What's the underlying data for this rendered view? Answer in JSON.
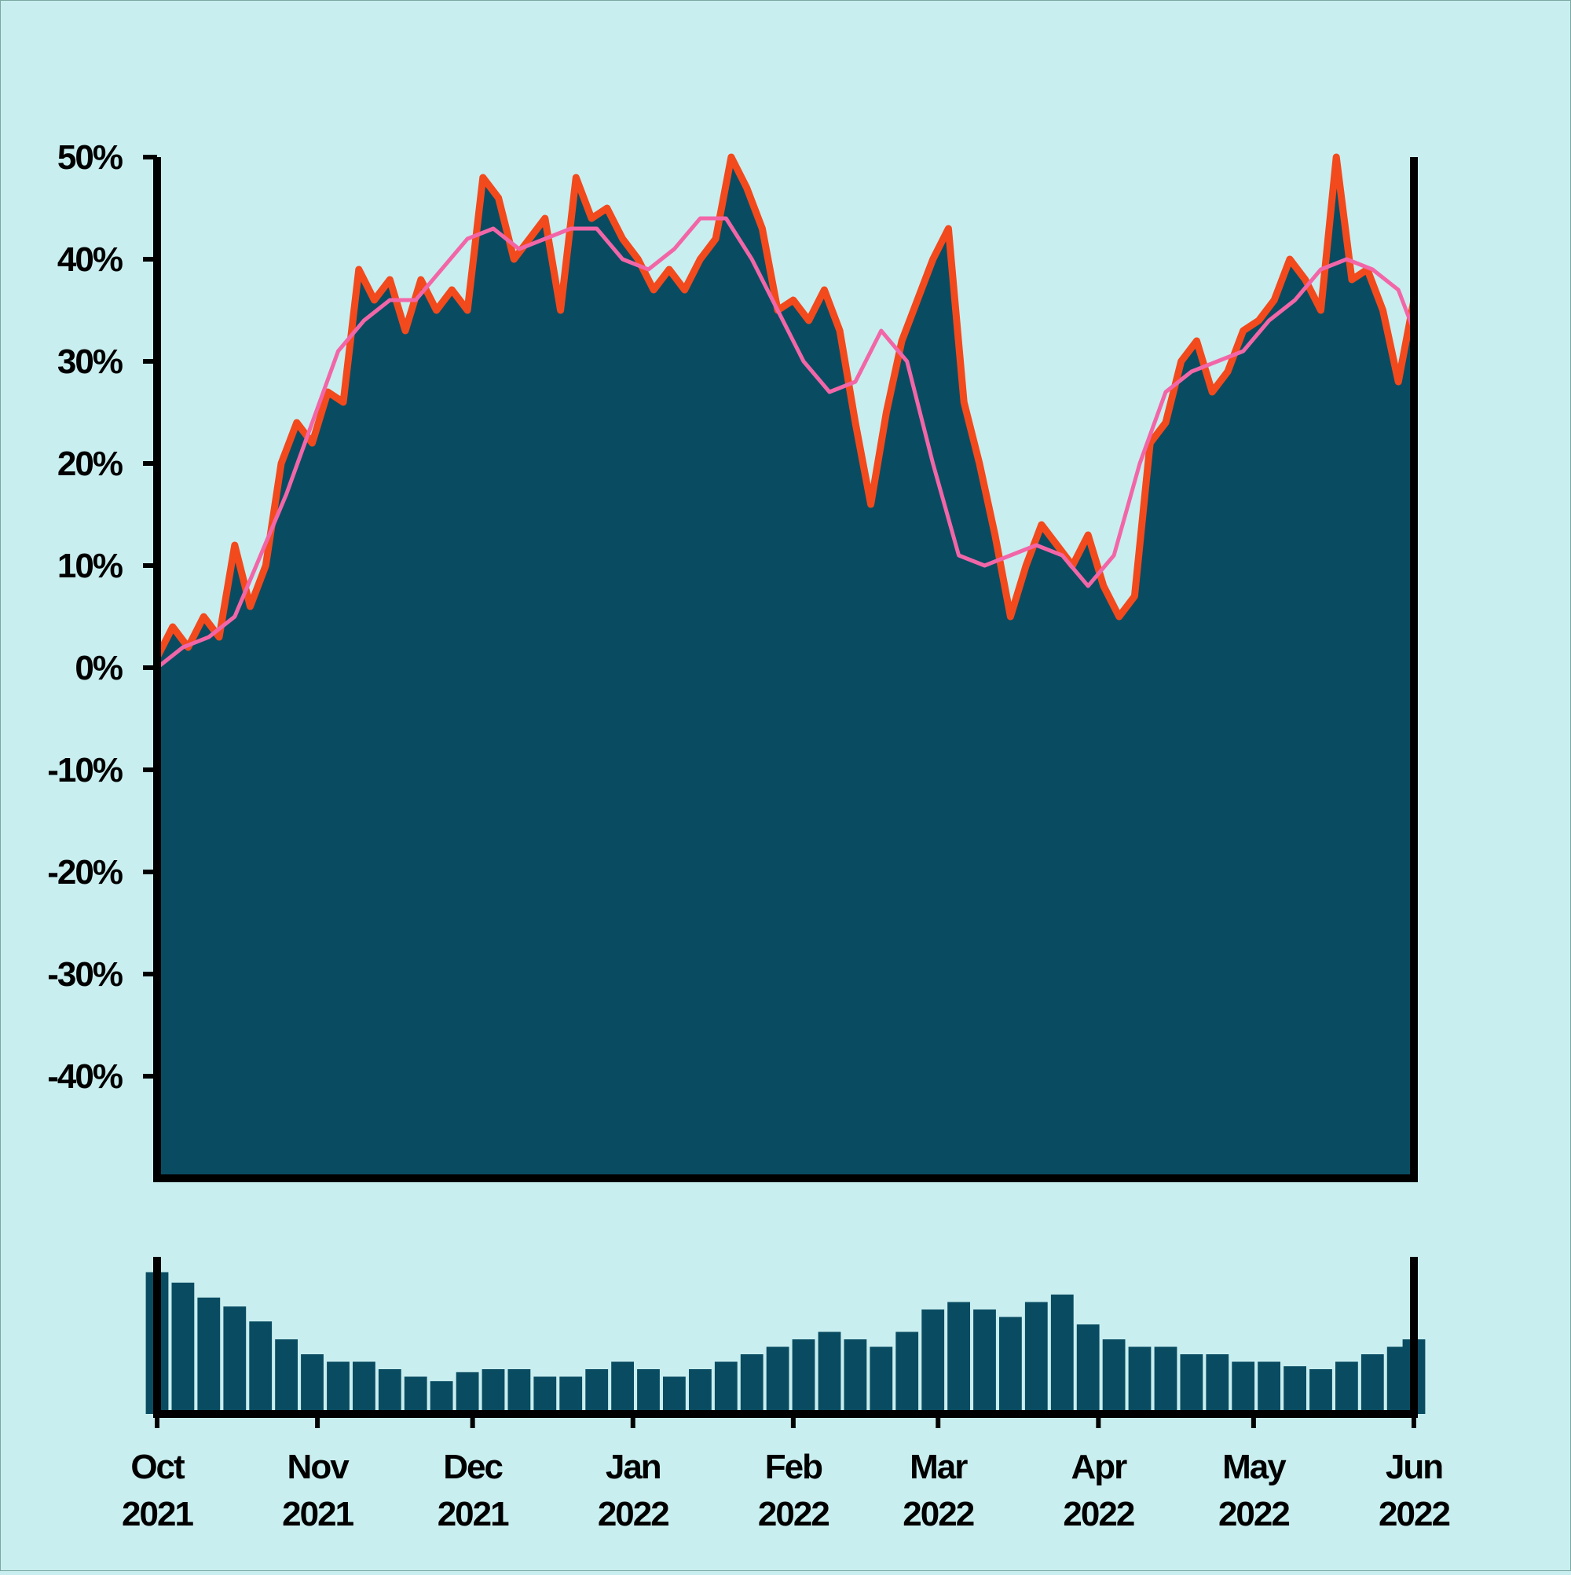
{
  "chart_data": {
    "type": "area",
    "title": "",
    "xlabel": "",
    "ylabel": "",
    "x_range": [
      "2021-10-01",
      "2022-06-01"
    ],
    "ylim": [
      -50,
      50
    ],
    "y_ticks": [
      50,
      40,
      30,
      20,
      10,
      0,
      -10,
      -20,
      -30,
      -40
    ],
    "y_tick_labels": [
      "50%",
      "40%",
      "30%",
      "20%",
      "10%",
      "0%",
      "-10%",
      "-20%",
      "-30%",
      "-40%"
    ],
    "x_ticks": [
      "2021-10-01",
      "2021-11-01",
      "2021-12-01",
      "2022-01-01",
      "2022-02-01",
      "2022-03-01",
      "2022-04-01",
      "2022-05-01",
      "2022-06-01"
    ],
    "x_tick_labels": [
      {
        "month": "Oct",
        "year": "2021"
      },
      {
        "month": "Nov",
        "year": "2021"
      },
      {
        "month": "Dec",
        "year": "2021"
      },
      {
        "month": "Jan",
        "year": "2022"
      },
      {
        "month": "Feb",
        "year": "2022"
      },
      {
        "month": "Mar",
        "year": "2022"
      },
      {
        "month": "Apr",
        "year": "2022"
      },
      {
        "month": "May",
        "year": "2022"
      },
      {
        "month": "Jun",
        "year": "2022"
      }
    ],
    "grid": false,
    "legend": "none",
    "series": [
      {
        "kind": "area",
        "x": [
          "2021-10-01",
          "2021-10-04",
          "2021-10-07",
          "2021-10-10",
          "2021-10-13",
          "2021-10-16",
          "2021-10-19",
          "2021-10-22",
          "2021-10-25",
          "2021-10-28",
          "2021-10-31",
          "2021-11-03",
          "2021-11-06",
          "2021-11-09",
          "2021-11-12",
          "2021-11-15",
          "2021-11-18",
          "2021-11-21",
          "2021-11-24",
          "2021-11-27",
          "2021-11-30",
          "2021-12-03",
          "2021-12-06",
          "2021-12-09",
          "2021-12-12",
          "2021-12-15",
          "2021-12-18",
          "2021-12-21",
          "2021-12-24",
          "2021-12-27",
          "2021-12-30",
          "2022-01-02",
          "2022-01-05",
          "2022-01-08",
          "2022-01-11",
          "2022-01-14",
          "2022-01-17",
          "2022-01-20",
          "2022-01-23",
          "2022-01-26",
          "2022-01-29",
          "2022-02-01",
          "2022-02-04",
          "2022-02-07",
          "2022-02-10",
          "2022-02-13",
          "2022-02-16",
          "2022-02-19",
          "2022-02-22",
          "2022-02-25",
          "2022-02-28",
          "2022-03-03",
          "2022-03-06",
          "2022-03-09",
          "2022-03-12",
          "2022-03-15",
          "2022-03-18",
          "2022-03-21",
          "2022-03-24",
          "2022-03-27",
          "2022-03-30",
          "2022-04-02",
          "2022-04-05",
          "2022-04-08",
          "2022-04-11",
          "2022-04-14",
          "2022-04-17",
          "2022-04-20",
          "2022-04-23",
          "2022-04-26",
          "2022-04-29",
          "2022-05-02",
          "2022-05-05",
          "2022-05-08",
          "2022-05-11",
          "2022-05-14",
          "2022-05-17",
          "2022-05-20",
          "2022-05-23",
          "2022-05-26",
          "2022-05-29",
          "2022-06-01"
        ],
        "values": [
          1,
          4,
          2,
          5,
          3,
          12,
          6,
          10,
          20,
          24,
          22,
          27,
          26,
          39,
          36,
          38,
          33,
          38,
          35,
          37,
          35,
          48,
          46,
          40,
          42,
          44,
          35,
          48,
          44,
          45,
          42,
          40,
          37,
          39,
          37,
          40,
          42,
          50,
          47,
          43,
          35,
          36,
          34,
          37,
          33,
          24,
          16,
          25,
          32,
          36,
          40,
          43,
          26,
          20,
          13,
          5,
          10,
          14,
          12,
          10,
          13,
          8,
          5,
          7,
          22,
          24,
          30,
          32,
          27,
          29,
          33,
          34,
          36,
          40,
          38,
          35,
          50,
          38,
          39,
          35,
          28,
          36
        ]
      },
      {
        "kind": "line",
        "x": [
          "2021-10-01",
          "2021-10-06",
          "2021-10-11",
          "2021-10-16",
          "2021-10-21",
          "2021-10-26",
          "2021-10-31",
          "2021-11-05",
          "2021-11-10",
          "2021-11-15",
          "2021-11-20",
          "2021-11-25",
          "2021-11-30",
          "2021-12-05",
          "2021-12-10",
          "2021-12-15",
          "2021-12-20",
          "2021-12-25",
          "2021-12-30",
          "2022-01-04",
          "2022-01-09",
          "2022-01-14",
          "2022-01-19",
          "2022-01-24",
          "2022-01-29",
          "2022-02-03",
          "2022-02-08",
          "2022-02-13",
          "2022-02-18",
          "2022-02-23",
          "2022-02-28",
          "2022-03-05",
          "2022-03-10",
          "2022-03-15",
          "2022-03-20",
          "2022-03-25",
          "2022-03-30",
          "2022-04-04",
          "2022-04-09",
          "2022-04-14",
          "2022-04-19",
          "2022-04-24",
          "2022-04-29",
          "2022-05-04",
          "2022-05-09",
          "2022-05-14",
          "2022-05-19",
          "2022-05-24",
          "2022-05-29",
          "2022-06-01"
        ],
        "values": [
          0,
          2,
          3,
          5,
          11,
          17,
          24,
          31,
          34,
          36,
          36,
          39,
          42,
          43,
          41,
          42,
          43,
          43,
          40,
          39,
          41,
          44,
          44,
          40,
          35,
          30,
          27,
          28,
          33,
          30,
          20,
          11,
          10,
          11,
          12,
          11,
          8,
          11,
          20,
          27,
          29,
          30,
          31,
          34,
          36,
          39,
          40,
          39,
          37,
          33
        ]
      },
      {
        "kind": "volume_bars",
        "x": [
          "2021-10-01",
          "2021-10-06",
          "2021-10-11",
          "2021-10-16",
          "2021-10-21",
          "2021-10-26",
          "2021-10-31",
          "2021-11-05",
          "2021-11-10",
          "2021-11-15",
          "2021-11-20",
          "2021-11-25",
          "2021-11-30",
          "2021-12-05",
          "2021-12-10",
          "2021-12-15",
          "2021-12-20",
          "2021-12-25",
          "2021-12-30",
          "2022-01-04",
          "2022-01-09",
          "2022-01-14",
          "2022-01-19",
          "2022-01-24",
          "2022-01-29",
          "2022-02-03",
          "2022-02-08",
          "2022-02-13",
          "2022-02-18",
          "2022-02-23",
          "2022-02-28",
          "2022-03-05",
          "2022-03-10",
          "2022-03-15",
          "2022-03-20",
          "2022-03-25",
          "2022-03-30",
          "2022-04-04",
          "2022-04-09",
          "2022-04-14",
          "2022-04-19",
          "2022-04-24",
          "2022-04-29",
          "2022-05-04",
          "2022-05-09",
          "2022-05-14",
          "2022-05-19",
          "2022-05-24",
          "2022-05-29",
          "2022-06-01"
        ],
        "values": [
          0.95,
          0.88,
          0.78,
          0.72,
          0.62,
          0.5,
          0.4,
          0.35,
          0.35,
          0.3,
          0.25,
          0.22,
          0.28,
          0.3,
          0.3,
          0.25,
          0.25,
          0.3,
          0.35,
          0.3,
          0.25,
          0.3,
          0.35,
          0.4,
          0.45,
          0.5,
          0.55,
          0.5,
          0.45,
          0.55,
          0.7,
          0.75,
          0.7,
          0.65,
          0.75,
          0.8,
          0.6,
          0.5,
          0.45,
          0.45,
          0.4,
          0.4,
          0.35,
          0.35,
          0.32,
          0.3,
          0.35,
          0.4,
          0.45,
          0.5
        ]
      }
    ],
    "colors": {
      "background": "#c9eeef",
      "area_fill": "#094c62",
      "area_edge": "#f24a1d",
      "moving_average": "#f266a8",
      "axis": "#000000"
    }
  }
}
